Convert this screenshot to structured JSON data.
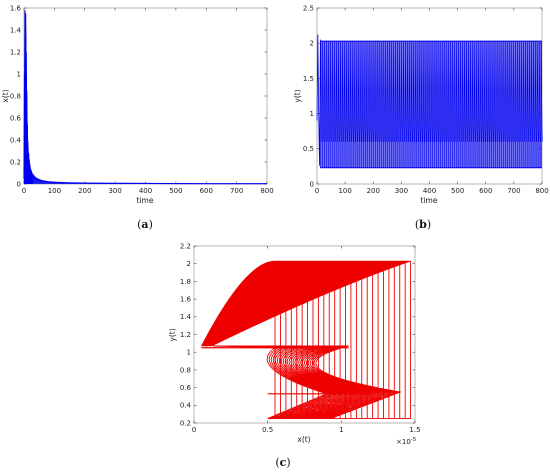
{
  "chart_data": [
    {
      "type": "line",
      "caption": "a",
      "xlabel": "time",
      "ylabel": "x(t)",
      "xlim": [
        0,
        800
      ],
      "ylim": [
        0,
        1.6
      ],
      "xticks": [
        0,
        100,
        200,
        300,
        400,
        500,
        600,
        700,
        800
      ],
      "yticks": [
        0,
        0.2,
        0.4,
        0.6,
        0.8,
        1,
        1.2,
        1.4,
        1.6
      ],
      "xtick_labels": [
        "0",
        "100",
        "200",
        "300",
        "400",
        "500",
        "600",
        "700",
        "800"
      ],
      "ytick_labels": [
        "0",
        "0.2",
        "0.4",
        "0.6",
        "0.8",
        "1",
        "1.2",
        "1.4",
        "1.6"
      ],
      "color": "#0000ee",
      "x": [
        0,
        2,
        4,
        6,
        8,
        10,
        12,
        14,
        16,
        18,
        20,
        25,
        30,
        40,
        50,
        60,
        80,
        100,
        150,
        200,
        300,
        400,
        500,
        600,
        700,
        800
      ],
      "y": [
        0.05,
        0.9,
        1.55,
        1.3,
        0.75,
        0.5,
        0.33,
        0.24,
        0.18,
        0.14,
        0.11,
        0.08,
        0.06,
        0.045,
        0.035,
        0.03,
        0.02,
        0.015,
        0.01,
        0.008,
        0.006,
        0.005,
        0.004,
        0.003,
        0.003,
        0.003
      ],
      "envelope_upper": [
        0.05,
        1.0,
        1.58,
        1.55,
        1.2,
        0.85,
        0.55,
        0.38,
        0.28,
        0.22,
        0.18,
        0.12,
        0.09,
        0.06,
        0.045,
        0.035,
        0.025,
        0.02,
        0.013,
        0.01,
        0.008,
        0.006,
        0.005,
        0.004,
        0.004,
        0.004
      ],
      "envelope_lower": [
        0.0,
        0.05,
        0.1,
        0.05,
        0.02,
        0.01,
        0.01,
        0.005,
        0.005,
        0.004,
        0.003,
        0.002,
        0.002,
        0.001,
        0.001,
        0.001,
        0.001,
        0.001,
        0.001,
        0.001,
        0.001,
        0.001,
        0.001,
        0.001,
        0.001,
        0.001
      ]
    },
    {
      "type": "line",
      "caption": "b",
      "xlabel": "time",
      "ylabel": "y(t)",
      "xlim": [
        0,
        800
      ],
      "ylim": [
        0,
        2.5
      ],
      "xticks": [
        0,
        100,
        200,
        300,
        400,
        500,
        600,
        700,
        800
      ],
      "yticks": [
        0,
        0.5,
        1,
        1.5,
        2,
        2.5
      ],
      "xtick_labels": [
        "0",
        "100",
        "200",
        "300",
        "400",
        "500",
        "600",
        "700",
        "800"
      ],
      "ytick_labels": [
        "0",
        "0.5",
        "1",
        "1.5",
        "2",
        "2.5"
      ],
      "color": "#0000ee",
      "transient_x": [
        0,
        3,
        6,
        9,
        12
      ],
      "transient_y": [
        0.9,
        2.12,
        1.0,
        0.26,
        2.05
      ],
      "oscillation_start": 12,
      "oscillation_max": 2.03,
      "oscillation_min": 0.23,
      "oscillation_period": 7,
      "oscillation_mid_band": [
        0.6,
        0.78
      ]
    },
    {
      "type": "line",
      "caption": "c",
      "xlabel": "x(t)",
      "ylabel": "y(t)",
      "xlim": [
        0,
        1.5
      ],
      "ylim": [
        0.2,
        2.2
      ],
      "x_exponent": "×10",
      "x_exponent_power": "-5",
      "xticks": [
        0,
        0.5,
        1,
        1.5
      ],
      "yticks": [
        0.2,
        0.4,
        0.6,
        0.8,
        1,
        1.2,
        1.4,
        1.6,
        1.8,
        2,
        2.2
      ],
      "xtick_labels": [
        "0",
        "0.5",
        "1",
        "1.5"
      ],
      "ytick_labels": [
        "0.2",
        "0.4",
        "0.6",
        "0.8",
        "1",
        "1.2",
        "1.4",
        "1.6",
        "1.8",
        "2",
        "2.2"
      ],
      "color": "#ee0000",
      "top_arc_start": [
        0.05,
        1.07
      ],
      "top_arc_x_range": [
        0.55,
        1.47
      ],
      "top_level": 2.03,
      "upper_band": [
        1.05,
        1.07
      ],
      "lower_band": [
        0.53,
        0.56
      ],
      "bottom_level": 0.25,
      "bottom_x_range": [
        0.5,
        1.45
      ],
      "num_loops": 26
    }
  ]
}
